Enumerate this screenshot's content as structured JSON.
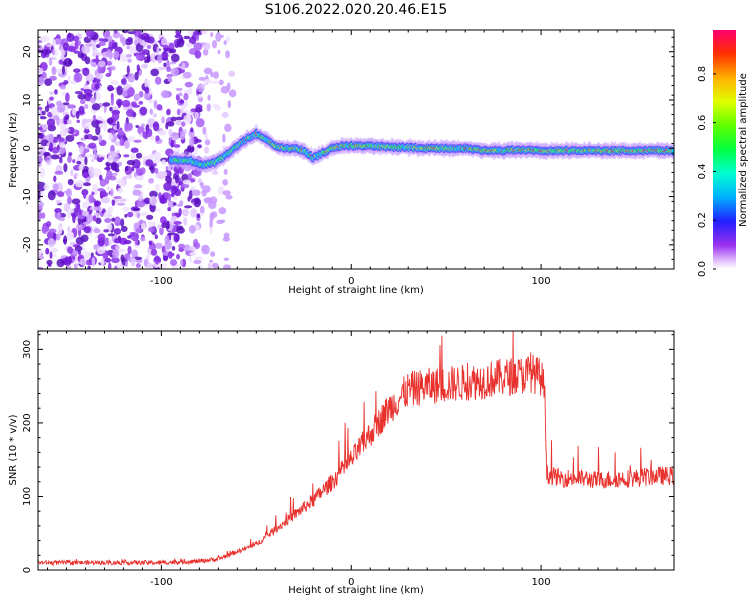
{
  "title": "S106.2022.020.20.46.E15",
  "colors": {
    "snr_line": "#e8302c",
    "ridge_core": "#ff2020",
    "scatter_purple": "#7a1fe0"
  },
  "colorbar": {
    "label": "Normalized spectral amplitude",
    "ticks": [
      "0.0",
      "0.2",
      "0.4",
      "0.6",
      "0.8"
    ],
    "tick_values": [
      0.0,
      0.2,
      0.4,
      0.6,
      0.8
    ],
    "range": [
      0,
      0.98
    ],
    "colormap": "gist_rainbow_r"
  },
  "chart_data": [
    {
      "type": "heatmap",
      "title": "S106.2022.020.20.46.E15",
      "xlabel": "Height of straight line (km)",
      "ylabel": "Frequency (Hz)",
      "xlim": [
        -165,
        170
      ],
      "ylim": [
        -25,
        24.5
      ],
      "xticks": [
        -100,
        0,
        100
      ],
      "xtick_labels": [
        "-100",
        "0",
        "100"
      ],
      "yticks": [
        -20,
        -10,
        0,
        10,
        20
      ],
      "ytick_labels": [
        "-20",
        "-10",
        "0",
        "10",
        "20"
      ],
      "noise_region_x": [
        -165,
        -62
      ],
      "ridge": {
        "x": [
          -95,
          -85,
          -78,
          -72,
          -66,
          -60,
          -55,
          -50,
          -45,
          -40,
          -35,
          -30,
          -25,
          -20,
          -15,
          -10,
          -5,
          0,
          10,
          20,
          40,
          60,
          70,
          80,
          90,
          100,
          110,
          120,
          140,
          160,
          168
        ],
        "freq": [
          -2.5,
          -2.5,
          -3.5,
          -3,
          -1.5,
          0.5,
          2,
          3,
          2,
          0.5,
          0,
          0,
          -0.5,
          -2,
          -1,
          0,
          0.5,
          0.5,
          0.5,
          0.3,
          0,
          0,
          -0.5,
          -0.5,
          -0.3,
          -0.5,
          -0.5,
          -0.5,
          -0.5,
          -0.5,
          -0.5
        ]
      }
    },
    {
      "type": "line",
      "xlabel": "Height of straight line (km)",
      "ylabel": "SNR (10 * v/v)",
      "xlim": [
        -165,
        170
      ],
      "ylim": [
        0,
        325
      ],
      "xticks": [
        -100,
        0,
        100
      ],
      "xtick_labels": [
        "-100",
        "0",
        "100"
      ],
      "yticks": [
        0,
        100,
        200,
        300
      ],
      "ytick_labels": [
        "0",
        "100",
        "200",
        "300"
      ],
      "series": [
        {
          "x": [
            -165,
            -140,
            -120,
            -100,
            -80,
            -70,
            -60,
            -50,
            -40,
            -30,
            -20,
            -10,
            0,
            10,
            20,
            30,
            40,
            50,
            60,
            70,
            80,
            90,
            95,
            100,
            102,
            103,
            110,
            120,
            130,
            140,
            150,
            160,
            170
          ],
          "values": [
            10,
            10,
            10,
            10,
            12,
            15,
            25,
            35,
            55,
            75,
            95,
            120,
            150,
            185,
            220,
            245,
            250,
            252,
            255,
            258,
            262,
            265,
            268,
            262,
            245,
            130,
            125,
            125,
            122,
            124,
            125,
            128,
            128
          ]
        }
      ]
    }
  ]
}
